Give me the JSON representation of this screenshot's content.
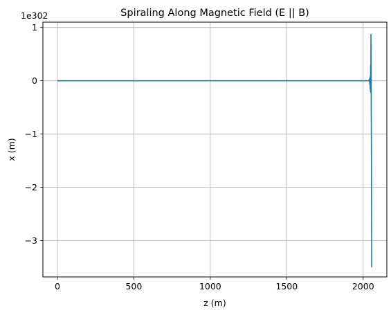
{
  "chart_data": {
    "type": "line",
    "title": "Spiraling Along Magnetic Field (E || B)",
    "xlabel": "z (m)",
    "ylabel": "x (m)",
    "y_offset_label": "1e302",
    "xlim": [
      -95,
      2155
    ],
    "ylim": [
      -3.68,
      1.1
    ],
    "xticks": [
      0,
      500,
      1000,
      1500,
      2000
    ],
    "yticks": [
      1,
      0,
      -1,
      -2,
      -3
    ],
    "xtick_labels": [
      "0",
      "500",
      "1000",
      "1500",
      "2000"
    ],
    "ytick_labels": [
      "1",
      "0",
      "−1",
      "−2",
      "−3"
    ],
    "grid": true,
    "series": [
      {
        "color": "#1f77b4",
        "x": [
          0,
          500,
          1000,
          1500,
          2000,
          2035,
          2040,
          2042,
          2043,
          2044,
          2045,
          2046,
          2047,
          2048,
          2049,
          2050,
          2051,
          2052,
          2053,
          2054,
          2055,
          2056
        ],
        "y": [
          0,
          0,
          0,
          0,
          0,
          0,
          0.02,
          -0.03,
          0.05,
          -0.08,
          0.06,
          -0.15,
          0.1,
          -0.2,
          0.3,
          -0.22,
          0.87,
          0.5,
          -0.6,
          -1.2,
          -2.5,
          -3.5
        ]
      }
    ]
  }
}
